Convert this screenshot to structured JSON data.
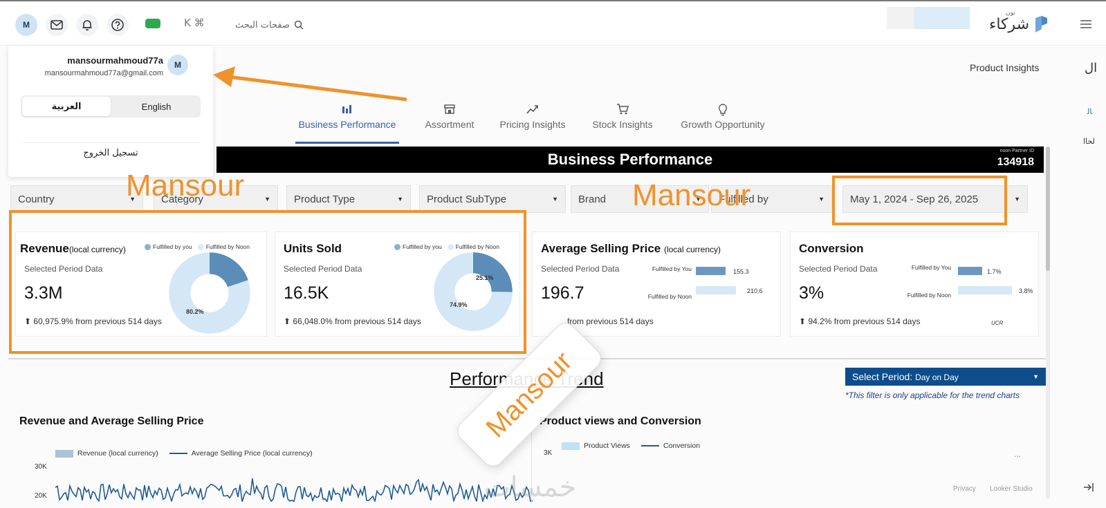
{
  "header": {
    "avatar_initial": "M",
    "search_placeholder": "صفحات البحث",
    "shortcut": "K ⌘",
    "brand": "شركاء",
    "brand_super": "نون",
    "menu_icon": "hamburger-icon"
  },
  "user_menu": {
    "username": "mansourmahmoud77a",
    "email": "mansourmahmoud77a@gmail.com",
    "avatar_initial": "M",
    "lang_arabic": "العربية",
    "lang_english": "English",
    "logout": "تسجيل الخروج"
  },
  "sidebar": {
    "page_label": "Product Insights",
    "rtl_label": "ال",
    "rtl_side_a": "ﺎﻟ",
    "rtl_side_b": "لحاا"
  },
  "tabs": [
    {
      "label": "Business Performance",
      "icon": "bar-chart-icon",
      "active": true
    },
    {
      "label": "Assortment",
      "icon": "store-icon",
      "active": false
    },
    {
      "label": "Pricing Insights",
      "icon": "trend-icon",
      "active": false
    },
    {
      "label": "Stock Insights",
      "icon": "cart-icon",
      "active": false
    },
    {
      "label": "Growth Opportunity",
      "icon": "bulb-icon",
      "active": false
    }
  ],
  "banner": {
    "title": "Business Performance",
    "partner_label": "noon Partner ID",
    "partner_id": "134918"
  },
  "filters": {
    "country": "Country",
    "category": "Category",
    "product_type": "Product Type",
    "product_subtype": "Product SubType",
    "brand": "Brand",
    "fulfilled_by": "Fulfilled by",
    "date_range": "May 1, 2024 - Sep 26, 2025"
  },
  "cards": {
    "revenue": {
      "title": "Revenue",
      "unit": "(local currency)",
      "subtitle": "Selected Period Data",
      "value": "3.3M",
      "delta": "⬆ 60,975.9% from previous 514 days",
      "legend_you": "Fulfilled by you",
      "legend_noon": "Fulfilled by Noon",
      "share_you": 19.8,
      "share_noon": 80.2,
      "label_noon": "80.2%"
    },
    "units": {
      "title": "Units Sold",
      "subtitle": "Selected Period Data",
      "value": "16.5K",
      "delta": "⬆ 66,048.0% from previous 514 days",
      "legend_you": "Fulfilled by you",
      "legend_noon": "Fulfilled by Noon",
      "share_you": 25.1,
      "share_noon": 74.9,
      "label_you": "25.1%",
      "label_noon": "74.9%"
    },
    "asp": {
      "title": "Average Selling Price",
      "unit": "(local currency)",
      "subtitle": "Selected Period Data",
      "value": "196.7",
      "delta": "from previous 514 days",
      "bar_you_label": "Fulfilled by You",
      "bar_noon_label": "Fulfilled by Noon",
      "bar_you": 155.3,
      "bar_noon": 210.6,
      "bar_you_text": "155.3",
      "bar_noon_text": "210.6"
    },
    "conversion": {
      "title": "Conversion",
      "subtitle": "Selected Period Data",
      "value": "3%",
      "delta": "⬆ 94.2% from previous 514 days",
      "bar_you_label": "Fulfilled by You",
      "bar_noon_label": "Fulfilled by Noon",
      "bar_you": 1.7,
      "bar_noon": 3.8,
      "bar_you_text": "1.7%",
      "bar_noon_text": "3.8%",
      "axis_label": "UCR"
    }
  },
  "trend": {
    "title": "Performance Trend",
    "period_label": "Select Period:",
    "period_value": "Day on Day",
    "note": "*This filter is only applicable for the trend charts"
  },
  "chart_left": {
    "title": "Revenue and Average Selling Price",
    "legend_revenue": "Revenue (local currency)",
    "legend_asp": "Average Selling Price (local currency)",
    "tick_30k": "30K",
    "tick_20k": "20K"
  },
  "chart_right": {
    "title": "Product views and Conversion",
    "legend_views": "Product Views",
    "legend_conv": "Conversion",
    "tick_3k": "3K",
    "more": "..."
  },
  "footer": {
    "privacy": "Privacy",
    "studio": "Looker Studio",
    "exit_icon": "exit-arrow-icon"
  },
  "watermarks": {
    "mansour_1": "Mansour",
    "mansour_2": "Mansour",
    "mansour_3": "Mansour",
    "khamsat": "خمسات"
  },
  "colors": {
    "accent_blue": "#3b5ea8",
    "donut_you": "#5b8db8",
    "donut_noon": "#d4e7f7",
    "orange": "#f0922b",
    "period_bg": "#0e4d8c"
  },
  "chart_data": [
    {
      "type": "pie",
      "title": "Revenue",
      "categories": [
        "Fulfilled by you",
        "Fulfilled by Noon"
      ],
      "values": [
        19.8,
        80.2
      ]
    },
    {
      "type": "pie",
      "title": "Units Sold",
      "categories": [
        "Fulfilled by you",
        "Fulfilled by Noon"
      ],
      "values": [
        25.1,
        74.9
      ]
    },
    {
      "type": "bar",
      "title": "Average Selling Price",
      "categories": [
        "Fulfilled by You",
        "Fulfilled by Noon"
      ],
      "values": [
        155.3,
        210.6
      ]
    },
    {
      "type": "bar",
      "title": "Conversion",
      "categories": [
        "Fulfilled by You",
        "Fulfilled by Noon"
      ],
      "values": [
        1.7,
        3.8
      ],
      "xlabel": "UCR"
    }
  ]
}
